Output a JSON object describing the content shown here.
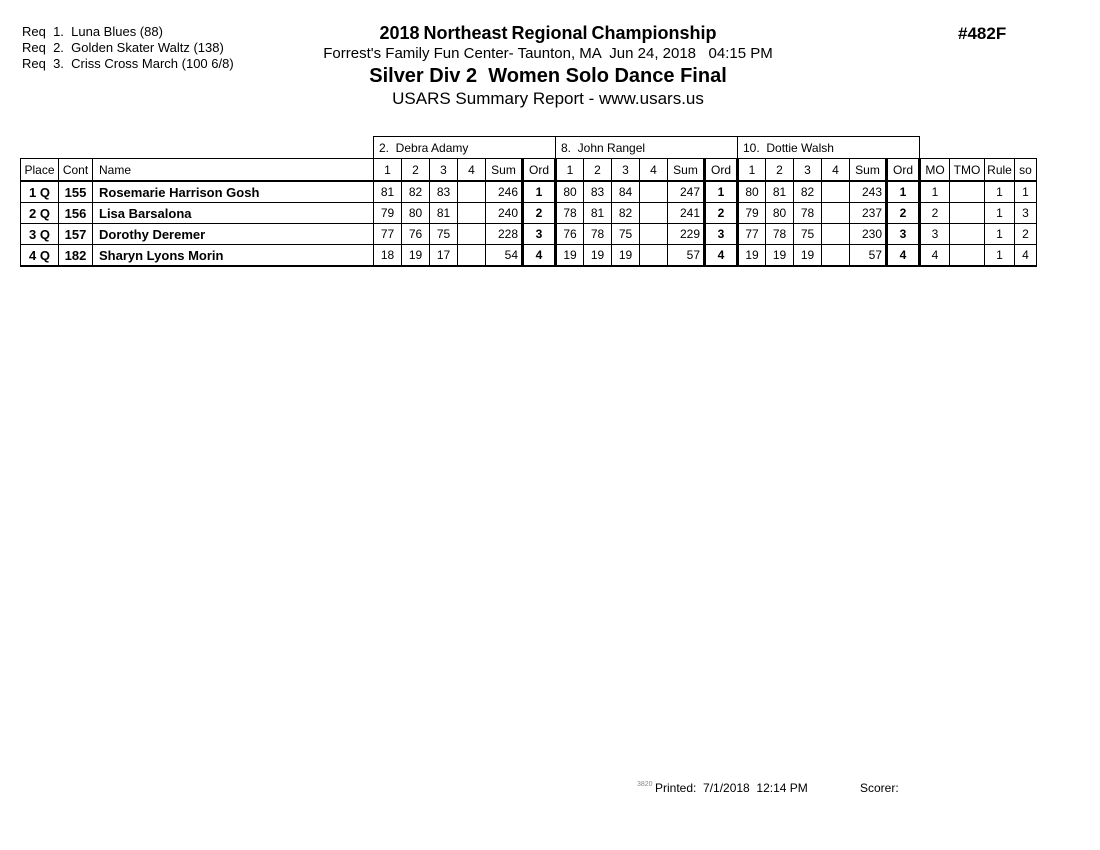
{
  "requirements": {
    "lines": [
      "Req  1.  Luna Blues (88)",
      "Req  2.  Golden Skater Waltz (138)",
      "Req  3.  Criss Cross March (100 6/8)"
    ]
  },
  "header": {
    "title": "2018 Northeast Regional Championship",
    "venue_line": "Forrest's Family Fun Center- Taunton, MA  Jun 24, 2018   04:15 PM",
    "event": "Silver Div 2  Women Solo Dance Final",
    "report_type": "USARS Summary Report - www.usars.us",
    "report_number": "#482F"
  },
  "table": {
    "left_headers": [
      "Place",
      "Cont",
      "Name"
    ],
    "judges": [
      "2.  Debra Adamy",
      "8.  John Rangel",
      "10.  Dottie Walsh"
    ],
    "judge_subheaders": [
      "1",
      "2",
      "3",
      "4",
      "Sum",
      "Ord"
    ],
    "right_headers": [
      "MO",
      "TMO",
      "Rule",
      "so"
    ],
    "rows": [
      {
        "place": "1 Q",
        "cont": "155",
        "name": "Rosemarie Harrison Gosh",
        "judge_scores": [
          [
            "81",
            "82",
            "83",
            "",
            "246",
            "1"
          ],
          [
            "80",
            "83",
            "84",
            "",
            "247",
            "1"
          ],
          [
            "80",
            "81",
            "82",
            "",
            "243",
            "1"
          ]
        ],
        "mo": "1",
        "tmo": "",
        "rule": "1",
        "so": "1"
      },
      {
        "place": "2 Q",
        "cont": "156",
        "name": "Lisa Barsalona",
        "judge_scores": [
          [
            "79",
            "80",
            "81",
            "",
            "240",
            "2"
          ],
          [
            "78",
            "81",
            "82",
            "",
            "241",
            "2"
          ],
          [
            "79",
            "80",
            "78",
            "",
            "237",
            "2"
          ]
        ],
        "mo": "2",
        "tmo": "",
        "rule": "1",
        "so": "3"
      },
      {
        "place": "3 Q",
        "cont": "157",
        "name": "Dorothy Deremer",
        "judge_scores": [
          [
            "77",
            "76",
            "75",
            "",
            "228",
            "3"
          ],
          [
            "76",
            "78",
            "75",
            "",
            "229",
            "3"
          ],
          [
            "77",
            "78",
            "75",
            "",
            "230",
            "3"
          ]
        ],
        "mo": "3",
        "tmo": "",
        "rule": "1",
        "so": "2"
      },
      {
        "place": "4 Q",
        "cont": "182",
        "name": "Sharyn Lyons Morin",
        "judge_scores": [
          [
            "18",
            "19",
            "17",
            "",
            "54",
            "4"
          ],
          [
            "19",
            "19",
            "19",
            "",
            "57",
            "4"
          ],
          [
            "19",
            "19",
            "19",
            "",
            "57",
            "4"
          ]
        ],
        "mo": "4",
        "tmo": "",
        "rule": "1",
        "so": "4"
      }
    ]
  },
  "footer": {
    "page_code": "3820",
    "printed": "Printed:  7/1/2018  12:14 PM",
    "scorer": "Scorer:"
  }
}
